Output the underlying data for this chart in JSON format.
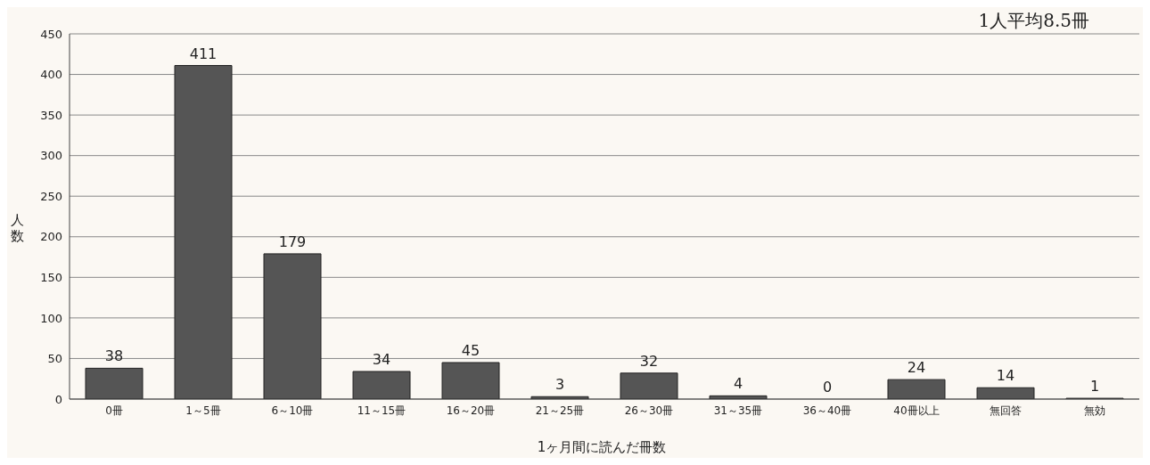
{
  "chart_data": {
    "type": "bar",
    "xlabel": "1ヶ月間に読んだ冊数",
    "ylabel": "人数",
    "annotations": [
      "1人平均8.5冊"
    ],
    "categories": [
      "0冊",
      "1～5冊",
      "6～10冊",
      "11～15冊",
      "16～20冊",
      "21～25冊",
      "26～30冊",
      "31～35冊",
      "36～40冊",
      "40冊以上",
      "無回答",
      "無効"
    ],
    "values": [
      38,
      411,
      179,
      34,
      45,
      3,
      32,
      4,
      0,
      24,
      14,
      1
    ],
    "color": "#555555",
    "ylim": [
      0,
      450
    ],
    "yticks": [
      0,
      50,
      100,
      150,
      200,
      250,
      300,
      350,
      400,
      450
    ],
    "grid": "y",
    "data_labels": true
  }
}
